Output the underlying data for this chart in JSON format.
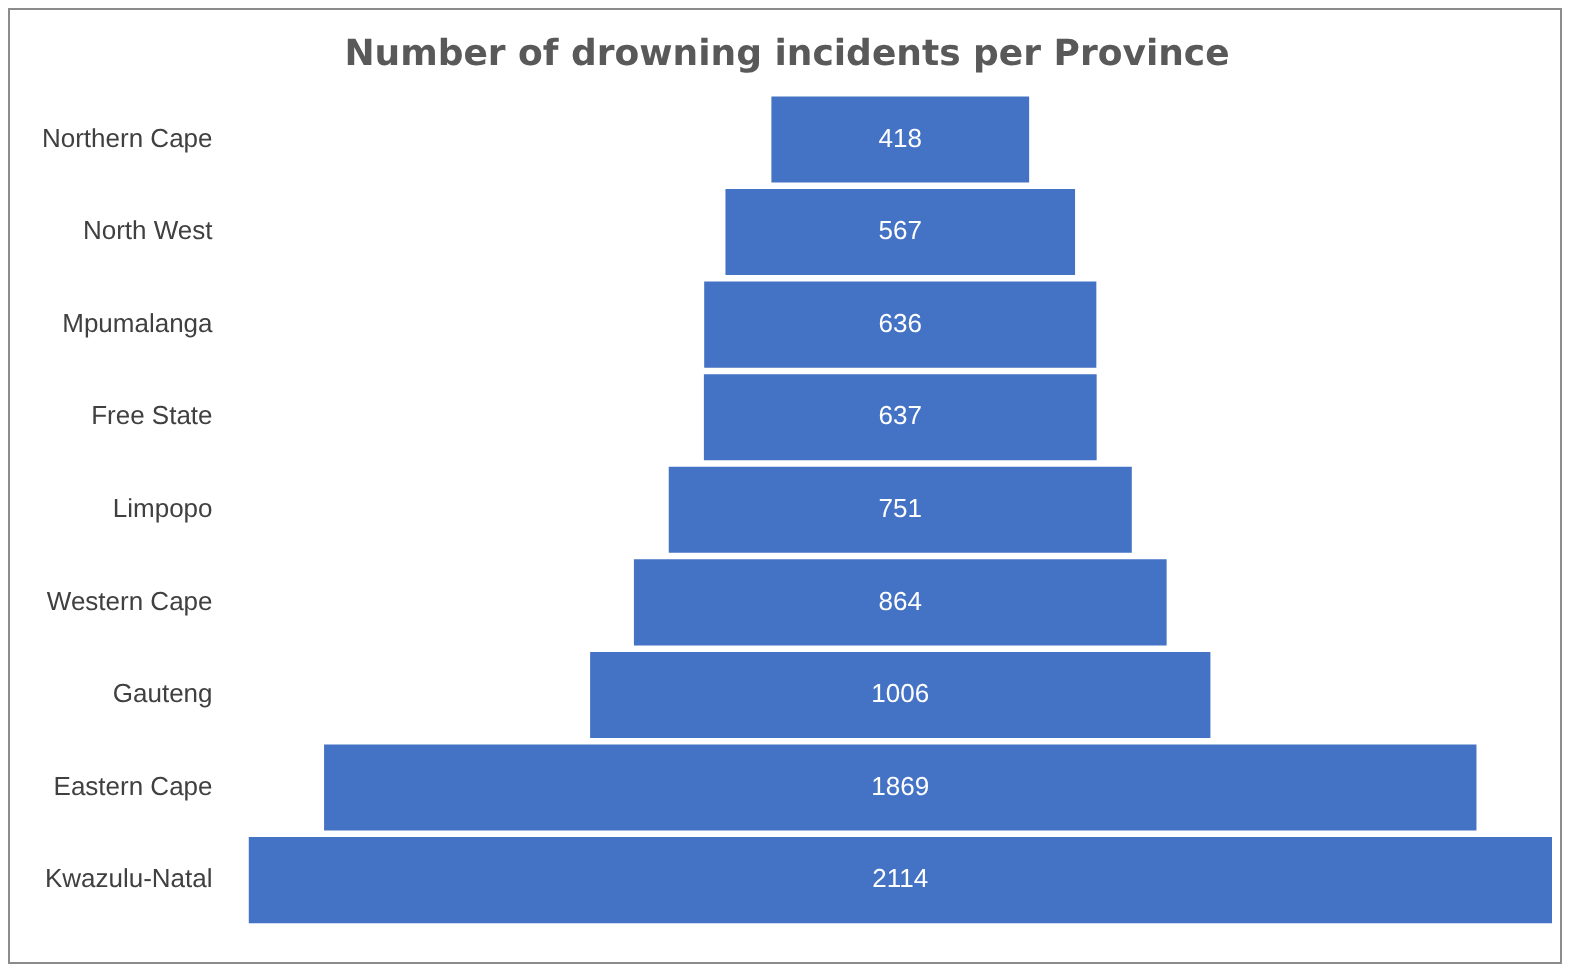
{
  "chart_data": {
    "type": "other",
    "title": "Number of drowning incidents per Province",
    "categories": [
      "Northern Cape",
      "North West",
      "Mpumalanga",
      "Free State",
      "Limpopo",
      "Western Cape",
      "Gauteng",
      "Eastern Cape",
      "Kwazulu-Natal"
    ],
    "values": [
      418,
      567,
      636,
      637,
      751,
      864,
      1006,
      1869,
      2114
    ],
    "color": "#4472c4",
    "data_labels": true
  }
}
